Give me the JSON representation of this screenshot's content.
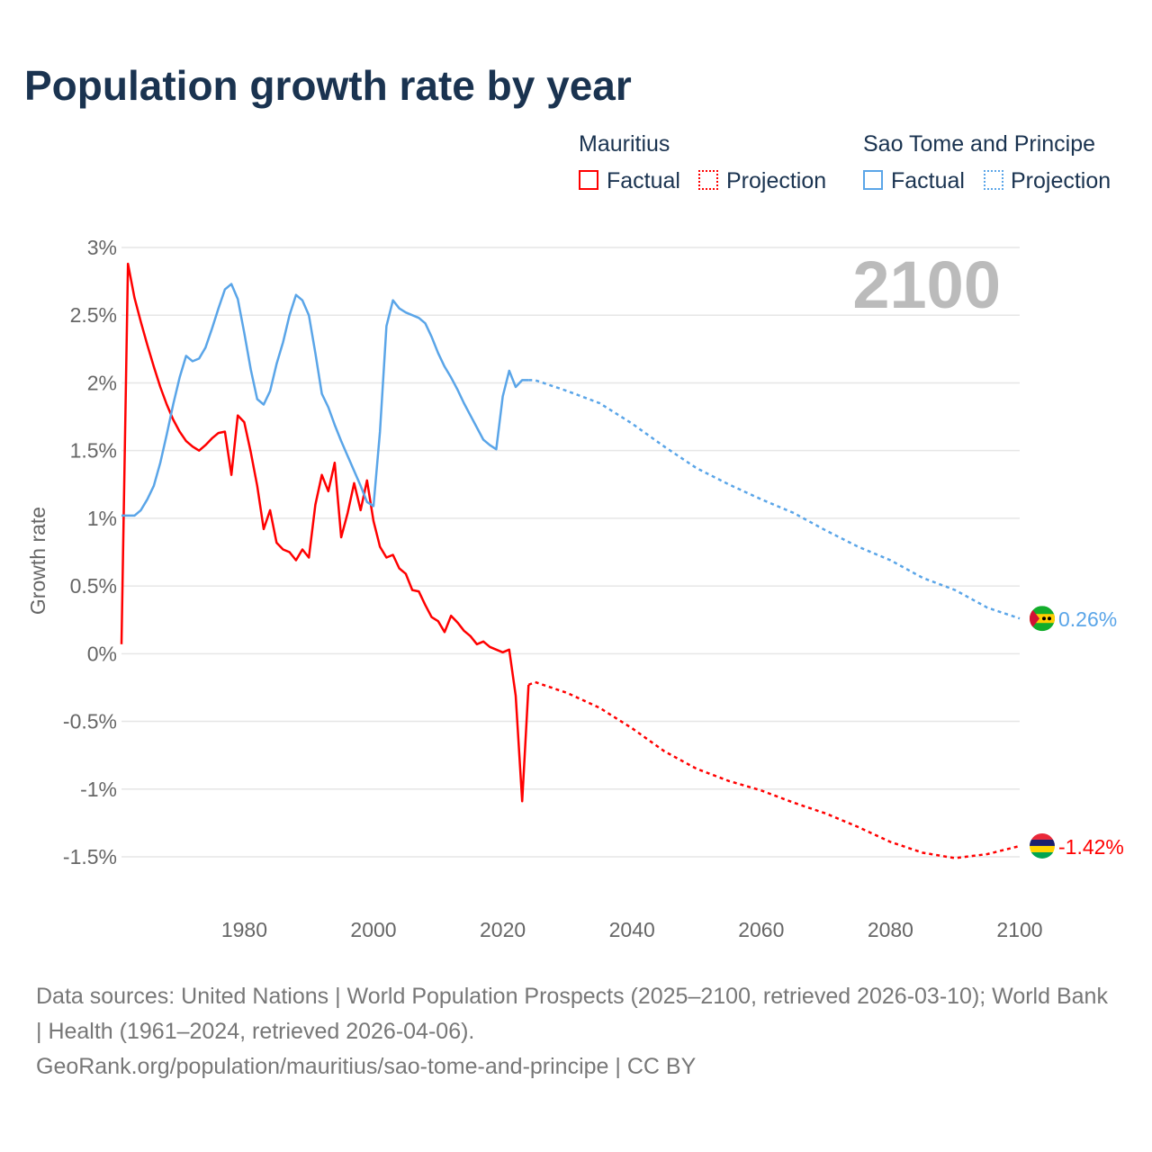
{
  "title": "Population growth rate by year",
  "legend": {
    "groups": [
      {
        "name": "Mauritius",
        "factual": "Factual",
        "projection": "Projection",
        "color": "#ff0000"
      },
      {
        "name": "Sao Tome and Principe",
        "factual": "Factual",
        "projection": "Projection",
        "color": "#5aa5e8"
      }
    ]
  },
  "year_label": "2100",
  "footer": {
    "sources": "Data sources: United Nations | World Population Prospects (2025–2100, retrieved 2026-03-10); World Bank | Health (1961–2024, retrieved 2026-04-06).",
    "link": "GeoRank.org/population/mauritius/sao-tome-and-principe | CC BY"
  },
  "chart_data": {
    "type": "line",
    "title": "Population growth rate by year",
    "xlabel": "",
    "ylabel": "Growth rate",
    "xlim": [
      1961,
      2100
    ],
    "ylim": [
      -1.5,
      3
    ],
    "xticks": [
      1980,
      2000,
      2020,
      2040,
      2060,
      2080,
      2100
    ],
    "yticks": [
      3,
      2.5,
      2,
      1.5,
      1,
      0.5,
      0,
      -0.5,
      -1,
      -1.5
    ],
    "ytick_labels": [
      "3%",
      "2.5%",
      "2%",
      "1.5%",
      "1%",
      "0.5%",
      "0%",
      "-0.5%",
      "-1%",
      "-1.5%"
    ],
    "grid": true,
    "series": [
      {
        "name": "Mauritius",
        "color": "#ff0000",
        "end_label": "-1.42%",
        "factual": {
          "x": [
            1961,
            1962,
            1963,
            1964,
            1965,
            1966,
            1967,
            1968,
            1969,
            1970,
            1971,
            1972,
            1973,
            1974,
            1975,
            1976,
            1977,
            1978,
            1979,
            1980,
            1981,
            1982,
            1983,
            1984,
            1985,
            1986,
            1987,
            1988,
            1989,
            1990,
            1991,
            1992,
            1993,
            1994,
            1995,
            1996,
            1997,
            1998,
            1999,
            2000,
            2001,
            2002,
            2003,
            2004,
            2005,
            2006,
            2007,
            2008,
            2009,
            2010,
            2011,
            2012,
            2013,
            2014,
            2015,
            2016,
            2017,
            2018,
            2019,
            2020,
            2021,
            2022,
            2023,
            2024
          ],
          "y": [
            0.07,
            2.88,
            2.63,
            2.45,
            2.28,
            2.12,
            1.97,
            1.84,
            1.73,
            1.64,
            1.57,
            1.53,
            1.5,
            1.54,
            1.59,
            1.63,
            1.64,
            1.32,
            1.76,
            1.71,
            1.49,
            1.24,
            0.92,
            1.06,
            0.82,
            0.77,
            0.75,
            0.69,
            0.77,
            0.71,
            1.1,
            1.32,
            1.2,
            1.41,
            0.86,
            1.04,
            1.26,
            1.06,
            1.28,
            0.98,
            0.79,
            0.71,
            0.73,
            0.63,
            0.59,
            0.47,
            0.46,
            0.36,
            0.27,
            0.24,
            0.16,
            0.28,
            0.23,
            0.17,
            0.13,
            0.07,
            0.09,
            0.05,
            0.03,
            0.01,
            0.03,
            -0.31,
            -1.09,
            -0.23
          ]
        },
        "projection": {
          "x": [
            2024,
            2025,
            2030,
            2035,
            2040,
            2045,
            2050,
            2055,
            2060,
            2065,
            2070,
            2075,
            2080,
            2085,
            2090,
            2095,
            2100
          ],
          "y": [
            -0.23,
            -0.21,
            -0.29,
            -0.4,
            -0.55,
            -0.72,
            -0.85,
            -0.94,
            -1.01,
            -1.1,
            -1.18,
            -1.28,
            -1.39,
            -1.47,
            -1.51,
            -1.48,
            -1.42
          ]
        }
      },
      {
        "name": "Sao Tome and Principe",
        "color": "#5aa5e8",
        "end_label": "0.26%",
        "factual": {
          "x": [
            1961,
            1962,
            1963,
            1964,
            1965,
            1966,
            1967,
            1968,
            1969,
            1970,
            1971,
            1972,
            1973,
            1974,
            1975,
            1976,
            1977,
            1978,
            1979,
            1980,
            1981,
            1982,
            1983,
            1984,
            1985,
            1986,
            1987,
            1988,
            1989,
            1990,
            1991,
            1992,
            1993,
            1994,
            1995,
            1996,
            1997,
            1998,
            1999,
            2000,
            2001,
            2002,
            2003,
            2004,
            2005,
            2006,
            2007,
            2008,
            2009,
            2010,
            2011,
            2012,
            2013,
            2014,
            2015,
            2016,
            2017,
            2018,
            2019,
            2020,
            2021,
            2022,
            2023,
            2024
          ],
          "y": [
            1.02,
            1.02,
            1.02,
            1.06,
            1.14,
            1.24,
            1.41,
            1.62,
            1.84,
            2.04,
            2.2,
            2.16,
            2.18,
            2.26,
            2.4,
            2.55,
            2.69,
            2.73,
            2.62,
            2.37,
            2.1,
            1.88,
            1.84,
            1.94,
            2.14,
            2.3,
            2.5,
            2.65,
            2.61,
            2.5,
            2.22,
            1.92,
            1.82,
            1.69,
            1.57,
            1.46,
            1.35,
            1.24,
            1.12,
            1.09,
            1.64,
            2.42,
            2.61,
            2.55,
            2.52,
            2.5,
            2.48,
            2.44,
            2.34,
            2.22,
            2.12,
            2.04,
            1.95,
            1.85,
            1.76,
            1.67,
            1.58,
            1.54,
            1.51,
            1.9,
            2.09,
            1.97,
            2.02,
            2.02
          ]
        },
        "projection": {
          "x": [
            2024,
            2025,
            2030,
            2035,
            2040,
            2045,
            2050,
            2055,
            2060,
            2065,
            2070,
            2075,
            2080,
            2085,
            2090,
            2095,
            2100
          ],
          "y": [
            2.02,
            2.02,
            1.94,
            1.85,
            1.7,
            1.53,
            1.37,
            1.25,
            1.14,
            1.04,
            0.91,
            0.79,
            0.69,
            0.56,
            0.47,
            0.34,
            0.26
          ]
        }
      }
    ]
  }
}
